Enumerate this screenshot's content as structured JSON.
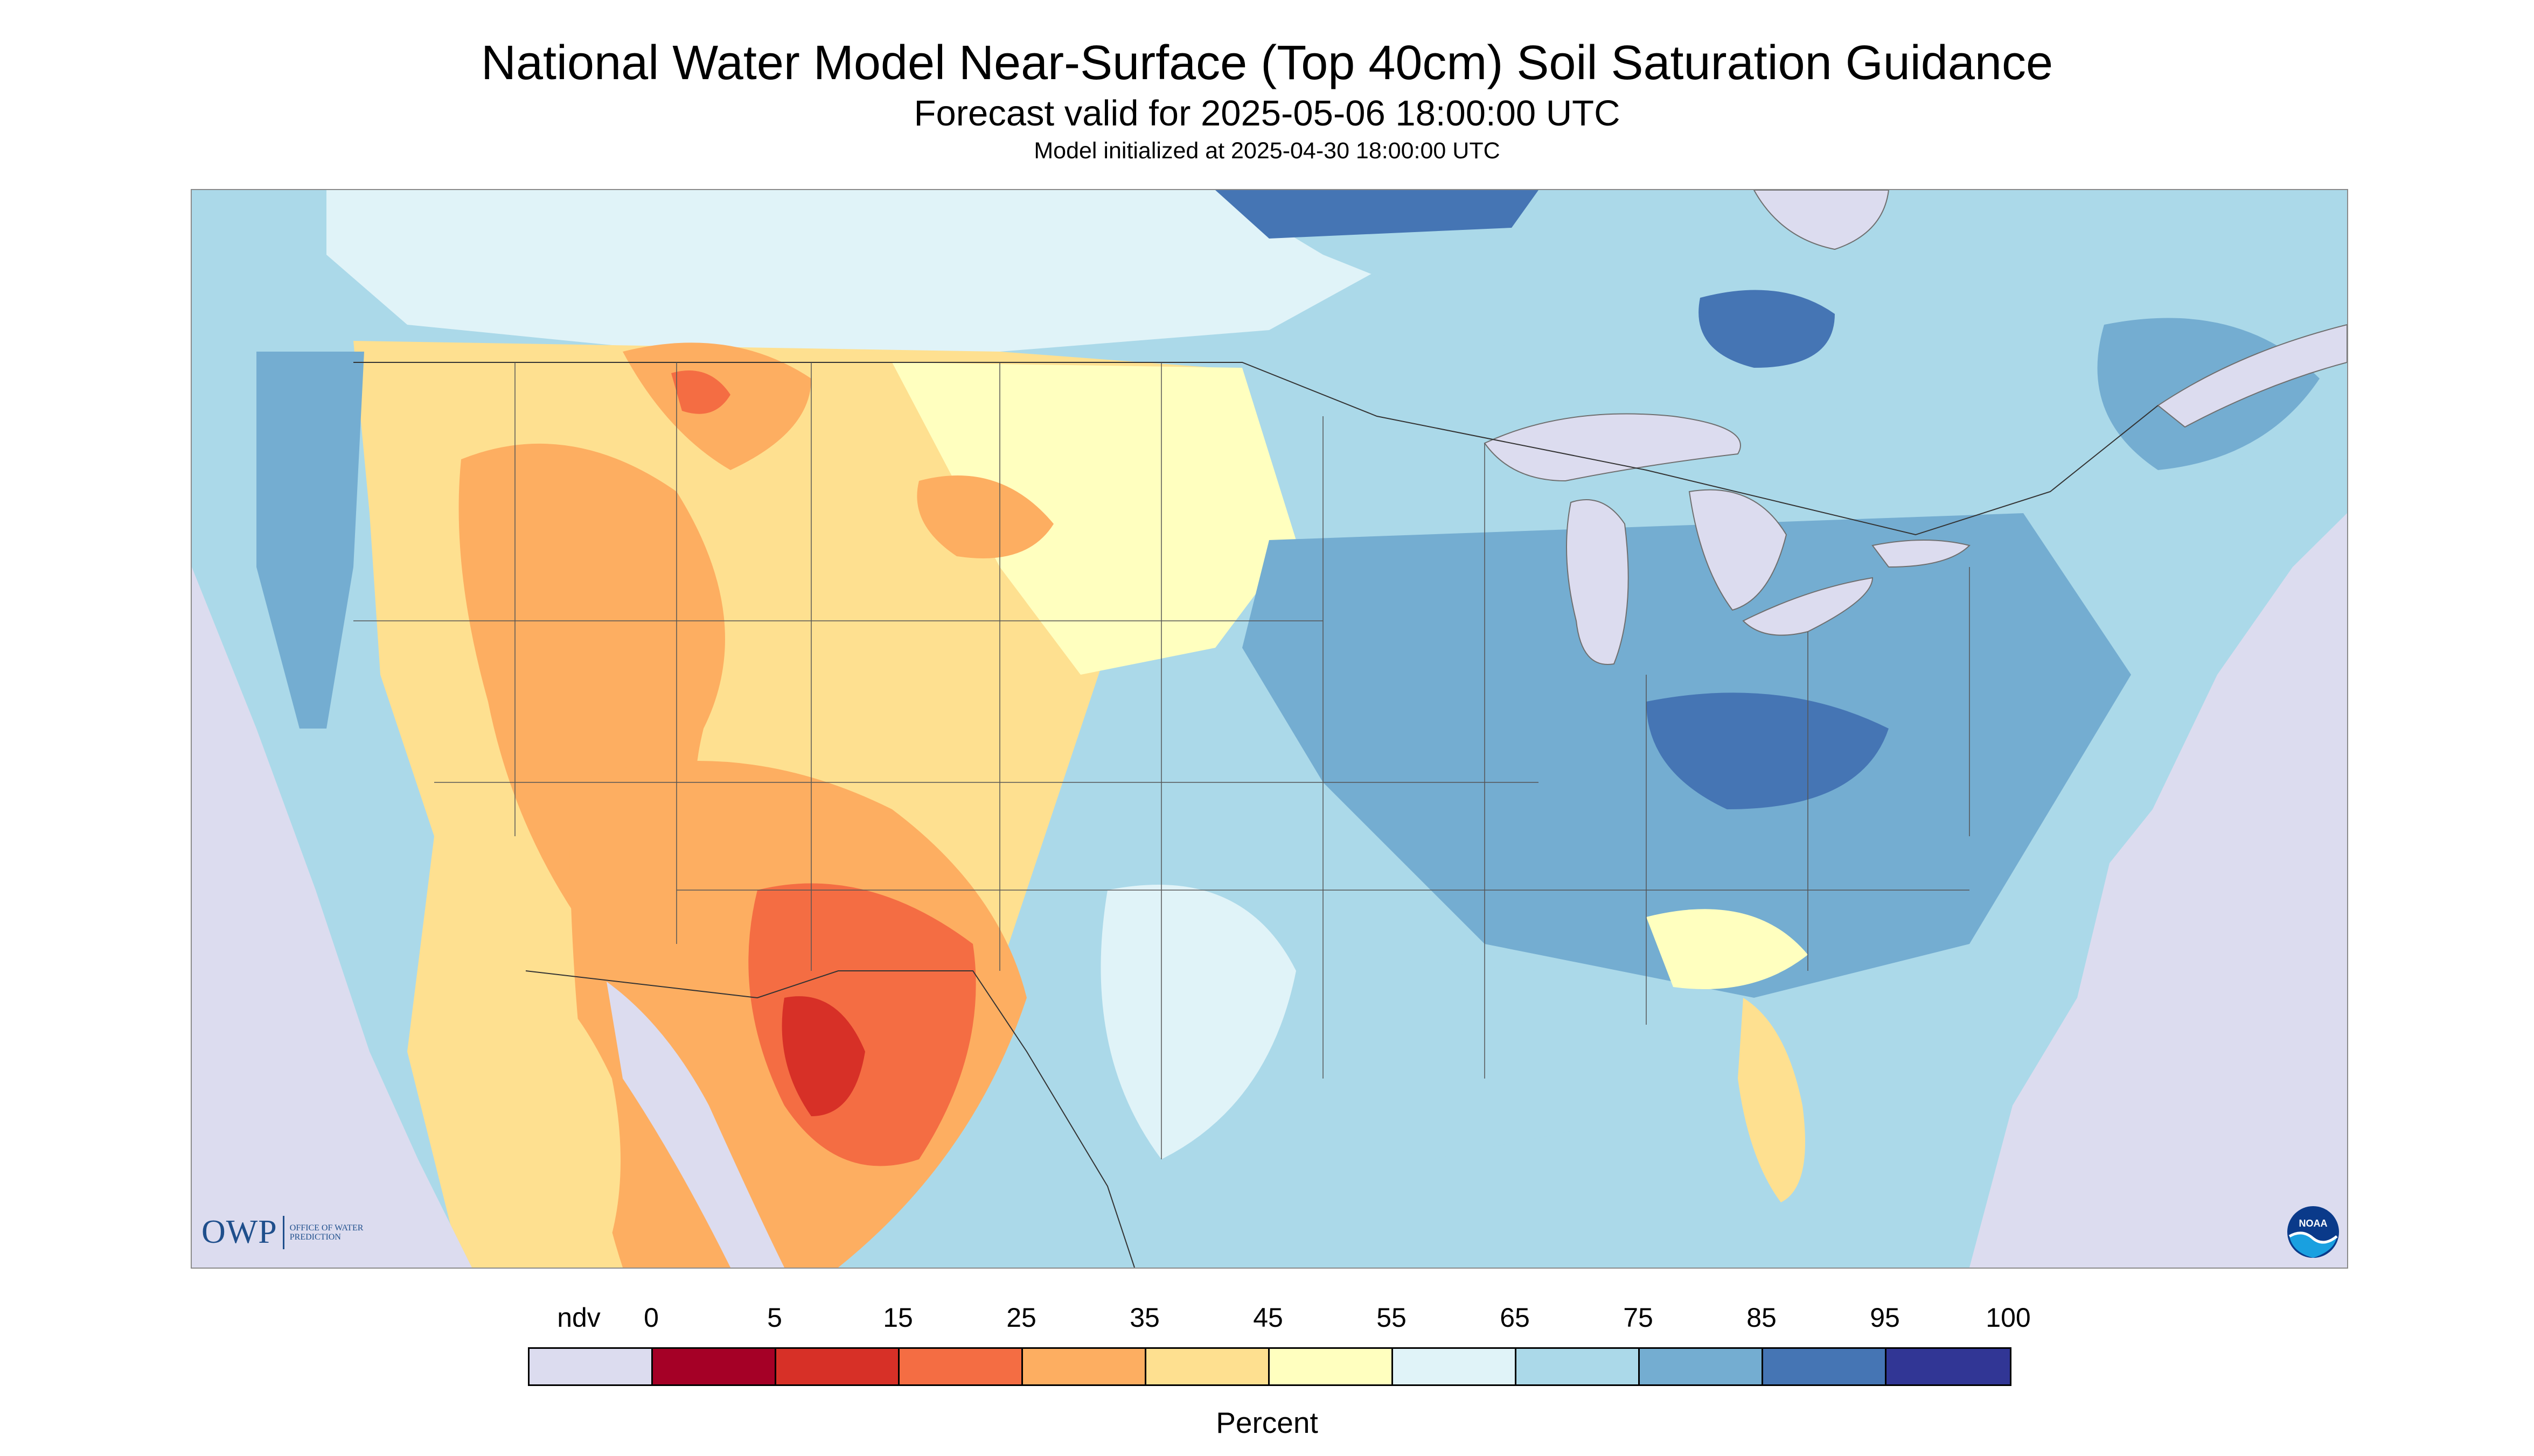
{
  "header": {
    "title": "National Water Model Near-Surface (Top 40cm) Soil Saturation Guidance",
    "valid_time": "Forecast valid for 2025-05-06 18:00:00 UTC",
    "init_time": "Model initialized at 2025-04-30 18:00:00 UTC"
  },
  "map": {
    "region": "CONUS",
    "no_data_color": "#dcdcef",
    "water_color": "#dcdcef"
  },
  "logos": {
    "owp_text": "OWP",
    "owp_subtext": "OFFICE OF WATER PREDICTION",
    "noaa_text": "NOAA"
  },
  "legend": {
    "unit": "Percent",
    "tick_labels": [
      "ndv",
      "0",
      "5",
      "15",
      "25",
      "35",
      "45",
      "55",
      "65",
      "75",
      "85",
      "95",
      "100"
    ],
    "bins": [
      {
        "label": "ndv",
        "color": "#dcdcef"
      },
      {
        "label": "0-5",
        "color": "#a50026"
      },
      {
        "label": "5-15",
        "color": "#d73027"
      },
      {
        "label": "15-25",
        "color": "#f46d43"
      },
      {
        "label": "25-35",
        "color": "#fdae61"
      },
      {
        "label": "35-45",
        "color": "#fee090"
      },
      {
        "label": "45-55",
        "color": "#ffffbf"
      },
      {
        "label": "55-65",
        "color": "#e0f3f8"
      },
      {
        "label": "65-75",
        "color": "#abd9e9"
      },
      {
        "label": "75-85",
        "color": "#74add1"
      },
      {
        "label": "85-95",
        "color": "#4575b4"
      },
      {
        "label": "95-100",
        "color": "#313695"
      }
    ]
  }
}
